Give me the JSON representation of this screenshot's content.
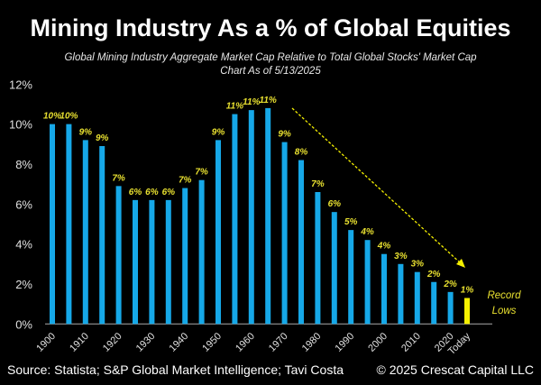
{
  "chart_data": {
    "type": "bar",
    "title": "Mining Industry As a % of Global Equities",
    "subtitle": [
      "Global Mining Industry Aggregate Market Cap Relative to Total Global Stocks' Market Cap",
      "Chart As of 5/13/2025"
    ],
    "categories": [
      "1900",
      "1905",
      "1910",
      "1915",
      "1920",
      "1925",
      "1930",
      "1935",
      "1940",
      "1945",
      "1950",
      "1955",
      "1960",
      "1965",
      "1970",
      "1975",
      "1980",
      "1985",
      "1990",
      "1995",
      "2000",
      "2005",
      "2010",
      "2015",
      "2020",
      "Today"
    ],
    "x_tick_labels": [
      "1900",
      "",
      "1910",
      "",
      "1920",
      "",
      "1930",
      "",
      "1940",
      "",
      "1950",
      "",
      "1960",
      "",
      "1970",
      "",
      "1980",
      "",
      "1990",
      "",
      "2000",
      "",
      "2010",
      "",
      "2020",
      "Today"
    ],
    "values": [
      10.0,
      10.0,
      9.2,
      8.9,
      6.9,
      6.2,
      6.2,
      6.2,
      6.8,
      7.2,
      9.2,
      10.5,
      10.7,
      10.8,
      9.1,
      8.2,
      6.6,
      5.6,
      4.7,
      4.2,
      3.5,
      3.0,
      2.6,
      2.1,
      1.6,
      1.3
    ],
    "data_labels": [
      "10%",
      "10%",
      "9%",
      "9%",
      "7%",
      "6%",
      "6%",
      "6%",
      "7%",
      "7%",
      "9%",
      "11%",
      "11%",
      "11%",
      "9%",
      "8%",
      "7%",
      "6%",
      "5%",
      "4%",
      "4%",
      "3%",
      "3%",
      "2%",
      "2%",
      "1%"
    ],
    "ylim": [
      0,
      12
    ],
    "yticks": [
      "0%",
      "2%",
      "4%",
      "6%",
      "8%",
      "10%",
      "12%"
    ],
    "xlabel": "",
    "ylabel": "",
    "grid": false,
    "annotation": [
      "Record",
      "Lows"
    ],
    "colors": {
      "bar": "#16a8e8",
      "highlight_bar": "#f5f000",
      "label": "#e8e030",
      "background": "#000000"
    }
  },
  "footer": {
    "source": "Source: Statista; S&P Global Market Intelligence; Tavi Costa",
    "copyright": "© 2025 Crescat Capital LLC"
  }
}
